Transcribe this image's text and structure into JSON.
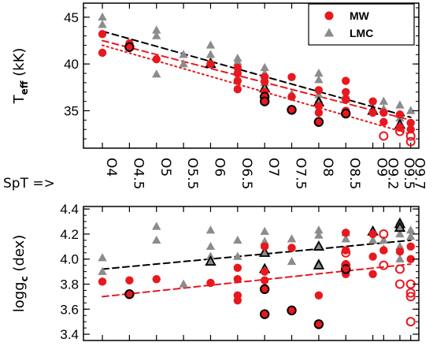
{
  "chart_data": [
    {
      "type": "scatter",
      "panel": "top",
      "ylabel": "T",
      "ylabel_sub": "eff",
      "ylabel_unit": " (kK)",
      "ylim": [
        31,
        46.5
      ],
      "xlim": [
        -0.7,
        11.7
      ],
      "yticks": [
        35,
        40,
        45
      ],
      "xcategory_label": "SpT =>",
      "categories": [
        "O4",
        "O4.5",
        "O5",
        "O5.5",
        "O6",
        "O6.5",
        "O7",
        "O7.5",
        "O8",
        "O8.5",
        "O9",
        "O9.2",
        "O9.5",
        "O9.7"
      ],
      "category_x": [
        0,
        1,
        2,
        3,
        4,
        5,
        6,
        7,
        8,
        9,
        10,
        10.4,
        11,
        11.4
      ],
      "legend": [
        {
          "name": "MW",
          "marker": "circle",
          "color": "#e8181e"
        },
        {
          "name": "LMC",
          "marker": "triangle",
          "color": "#8c8c8c"
        }
      ],
      "legend_position": "top-right",
      "series": [
        {
          "name": "MW",
          "marker": "filled-circle",
          "x": [
            0,
            0,
            1,
            1,
            2,
            4,
            5,
            5,
            5,
            5,
            6,
            6,
            6,
            6,
            7,
            7,
            8,
            8,
            8,
            9,
            9,
            9,
            9,
            10,
            10,
            10.4,
            10.4,
            11,
            11,
            11.4,
            11.4
          ],
          "y": [
            43.2,
            41.2,
            42.2,
            41.8,
            40.5,
            40.0,
            39.6,
            39.0,
            38.2,
            37.3,
            38.6,
            38.1,
            37.0,
            36.3,
            38.6,
            36.5,
            37.2,
            35.5,
            34.8,
            38.2,
            37.0,
            36.2,
            35.0,
            36.0,
            34.8,
            34.8,
            33.8,
            34.6,
            33.2,
            33.7,
            33.0
          ]
        },
        {
          "name": "MW (circled)",
          "marker": "circle-black-edge",
          "x": [
            1,
            6,
            6,
            7,
            8,
            9
          ],
          "y": [
            41.8,
            36.5,
            36.0,
            35.1,
            33.8,
            34.7
          ]
        },
        {
          "name": "MW (open)",
          "marker": "open-circle",
          "x": [
            10.4,
            11,
            11.4,
            11.4
          ],
          "y": [
            32.3,
            32.8,
            32.3,
            31.7
          ]
        },
        {
          "name": "LMC",
          "marker": "filled-triangle",
          "x": [
            0,
            0,
            2,
            2,
            2,
            3,
            3,
            4,
            4,
            4,
            5,
            5,
            6,
            6,
            6,
            6,
            7,
            8,
            8,
            8,
            8,
            9,
            9,
            10,
            10,
            10.4,
            10.4,
            11,
            11,
            11,
            11.4
          ],
          "y": [
            45.0,
            44.2,
            43.6,
            43.0,
            38.9,
            41.0,
            40.0,
            42.0,
            41.0,
            40.3,
            40.6,
            40.2,
            39.6,
            39.0,
            38.0,
            37.5,
            36.8,
            39.0,
            38.3,
            36.7,
            36.2,
            36.7,
            36.2,
            35.2,
            35.0,
            36.0,
            35.2,
            35.6,
            34.6,
            34.2,
            35.0
          ]
        },
        {
          "name": "LMC (outlined)",
          "marker": "triangle-black-edge",
          "x": [
            4,
            6,
            8,
            10,
            11
          ],
          "y": [
            40.0,
            37.4,
            35.9,
            35.0,
            33.5
          ]
        }
      ],
      "fits": [
        {
          "color": "#000000",
          "style": "dashed",
          "x": [
            0,
            11.4
          ],
          "y": [
            43.5,
            34.3
          ]
        },
        {
          "color": "#e8181e",
          "style": "dashed",
          "x": [
            0,
            11.4
          ],
          "y": [
            42.5,
            34.0
          ]
        },
        {
          "color": "#e8181e",
          "style": "dotted",
          "x": [
            0,
            11.4
          ],
          "y": [
            42.0,
            32.5
          ]
        }
      ]
    },
    {
      "type": "scatter",
      "panel": "bottom",
      "ylabel": "logg",
      "ylabel_sub": "c",
      "ylabel_unit": " (dex)",
      "ylim": [
        3.35,
        4.42
      ],
      "xlim": [
        -0.7,
        11.7
      ],
      "yticks": [
        3.4,
        3.6,
        3.8,
        4.0,
        4.2,
        4.4
      ],
      "ytick_labels": [
        "3.4",
        "3.6",
        "3.8",
        "4.0",
        "4.2",
        "4.4"
      ],
      "series": [
        {
          "name": "MW",
          "marker": "filled-circle",
          "x": [
            0,
            1,
            2,
            4,
            5,
            5,
            5,
            5,
            6,
            6,
            6,
            6,
            7,
            7,
            8,
            8,
            9,
            9,
            9,
            9,
            10,
            10,
            10,
            10.4,
            11,
            11.4,
            11.4
          ],
          "y": [
            3.82,
            3.83,
            3.84,
            3.81,
            3.93,
            3.84,
            3.71,
            3.67,
            4.1,
            3.9,
            3.83,
            3.76,
            4.09,
            3.59,
            3.71,
            3.48,
            4.21,
            4.07,
            3.96,
            3.88,
            4.2,
            4.02,
            3.88,
            4.07,
            4.06,
            4.1,
            4.0
          ]
        },
        {
          "name": "MW (circled)",
          "marker": "circle-black-edge",
          "x": [
            1,
            6,
            6,
            7,
            8,
            9
          ],
          "y": [
            3.72,
            3.76,
            3.56,
            3.59,
            3.48,
            3.92
          ]
        },
        {
          "name": "MW (open)",
          "marker": "open-circle",
          "x": [
            9,
            9,
            10.4,
            10.4,
            11,
            11,
            11.4,
            11.4,
            11.4,
            11.4
          ],
          "y": [
            4.05,
            3.95,
            4.2,
            3.95,
            3.92,
            3.8,
            3.8,
            3.73,
            3.7,
            3.5
          ]
        },
        {
          "name": "LMC",
          "marker": "filled-triangle",
          "x": [
            0,
            0,
            2,
            2,
            3,
            4,
            4,
            4,
            5,
            5,
            6,
            6,
            6,
            7,
            7,
            8,
            8,
            8,
            8,
            9,
            9,
            10,
            10,
            10.4,
            10.4,
            11,
            11,
            11,
            11,
            11.4,
            11.4
          ],
          "y": [
            4.01,
            3.9,
            4.26,
            4.15,
            3.8,
            4.23,
            4.1,
            4.02,
            4.15,
            4.02,
            4.22,
            4.14,
            4.05,
            4.16,
            3.98,
            4.23,
            4.19,
            4.11,
            3.97,
            4.21,
            4.16,
            4.22,
            4.15,
            4.15,
            4.08,
            4.3,
            4.2,
            4.1,
            4.0,
            4.23,
            4.18
          ]
        },
        {
          "name": "LMC (outlined)",
          "marker": "triangle-black-edge",
          "x": [
            4,
            6,
            6,
            8,
            8,
            10,
            11,
            11
          ],
          "y": [
            3.98,
            4.05,
            3.92,
            4.1,
            3.95,
            4.22,
            4.28,
            4.25
          ]
        }
      ],
      "fits": [
        {
          "color": "#000000",
          "style": "dashed",
          "x": [
            0,
            11.4
          ],
          "y": [
            3.92,
            4.15
          ]
        },
        {
          "color": "#e8181e",
          "style": "dashed",
          "x": [
            0,
            11.4
          ],
          "y": [
            3.7,
            3.96
          ]
        }
      ]
    }
  ]
}
